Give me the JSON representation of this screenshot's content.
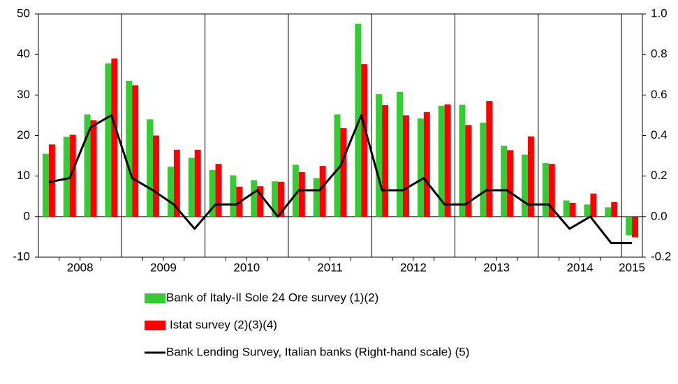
{
  "chart_data": {
    "type": "bar-line",
    "year_labels": [
      "2008",
      "2009",
      "2010",
      "2011",
      "2012",
      "2013",
      "2014",
      "2015"
    ],
    "categories": [
      null,
      null,
      null,
      null,
      null,
      null,
      null,
      null,
      null,
      null,
      null,
      null,
      null,
      null,
      null,
      null,
      null,
      null,
      null,
      null,
      null,
      null,
      null,
      null,
      null,
      null,
      null,
      null,
      null
    ],
    "series": [
      {
        "name": "Bank of Italy-Il Sole 24 Ore survey (1)(2)",
        "color": "#33cc33",
        "type": "bar",
        "values": [
          15.5,
          19.7,
          25.2,
          37.8,
          33.5,
          24,
          12.3,
          14.5,
          11.5,
          10.2,
          9,
          8.7,
          12.8,
          9.5,
          25.2,
          47.6,
          30.2,
          30.8,
          24.2,
          27.3,
          27.6,
          23.2,
          17.5,
          15.3,
          13.2,
          4,
          3,
          2.3,
          -4.6
        ]
      },
      {
        "name": "Istat survey (2)(3)(4)",
        "color": "#ff0000",
        "type": "bar",
        "values": [
          17.8,
          20.2,
          23.8,
          39,
          32.4,
          20,
          16.5,
          16.5,
          13,
          7.4,
          7.5,
          8.6,
          11,
          12.5,
          21.8,
          37.6,
          27.5,
          25,
          25.8,
          27.7,
          22.6,
          28.5,
          16.4,
          19.8,
          13,
          3.4,
          5.7,
          3.6,
          -5.1
        ]
      },
      {
        "name": "Bank Lending Survey, Italian banks (Right-hand scale) (5)",
        "color": "#000000",
        "type": "line",
        "axis": "y2",
        "values": [
          0.17,
          0.19,
          0.44,
          0.5,
          0.19,
          0.13,
          0.06,
          -0.06,
          0.06,
          0.06,
          0.13,
          0,
          0.13,
          0.13,
          0.25,
          0.5,
          0.13,
          0.13,
          0.19,
          0.06,
          0.06,
          0.13,
          0.13,
          0.06,
          0.06,
          -0.06,
          0,
          -0.13,
          -0.13
        ]
      }
    ],
    "ylim": [
      -10,
      50
    ],
    "yticks": [
      -10,
      0,
      10,
      20,
      30,
      40,
      50
    ],
    "y2lim": [
      -0.2,
      1.0
    ],
    "y2ticks": [
      -0.2,
      {
        "value": 0,
        "label": "0.0"
      },
      0.2,
      0.4,
      0.6,
      0.8,
      {
        "value": 1,
        "label": "1.0"
      }
    ]
  }
}
